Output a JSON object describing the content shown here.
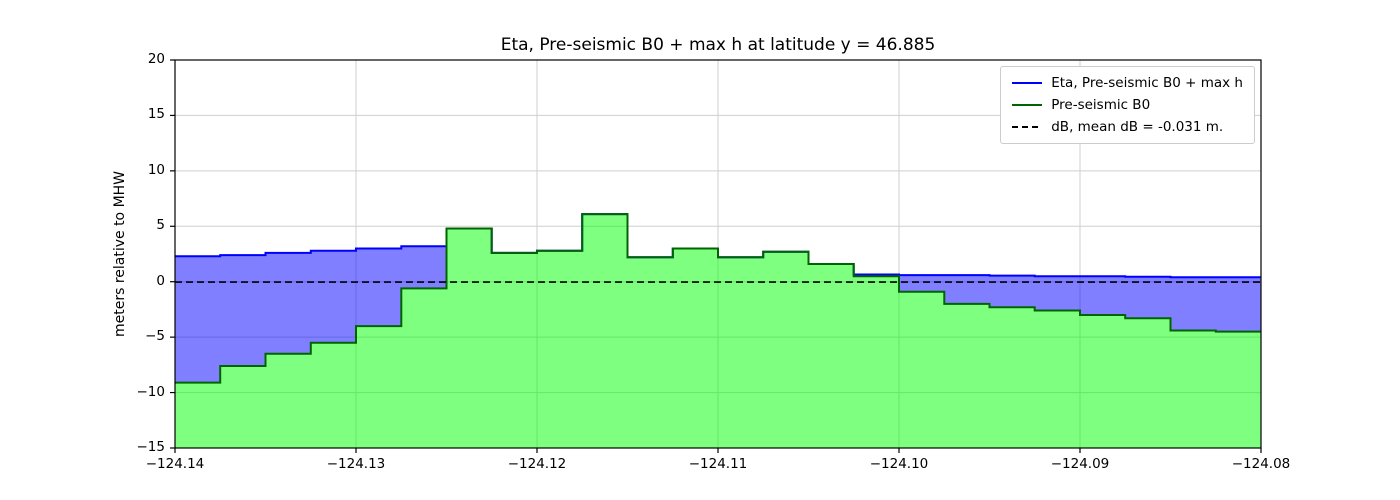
{
  "chart_data": {
    "type": "area",
    "title": "Eta, Pre-seismic B0 + max h at latitude y = 46.885",
    "xlabel": "",
    "ylabel": "meters relative to MHW",
    "xlim": [
      -124.14,
      -124.08
    ],
    "ylim": [
      -15,
      20
    ],
    "x_ticks": [
      -124.14,
      -124.13,
      -124.12,
      -124.11,
      -124.1,
      -124.09,
      -124.08
    ],
    "x_tick_labels": [
      "−124.14",
      "−124.13",
      "−124.12",
      "−124.11",
      "−124.10",
      "−124.09",
      "−124.08"
    ],
    "y_ticks": [
      -15,
      -10,
      -5,
      0,
      5,
      10,
      15,
      20
    ],
    "y_tick_labels": [
      "−15",
      "−10",
      "−5",
      "0",
      "5",
      "10",
      "15",
      "20"
    ],
    "grid": true,
    "legend_position": "upper right",
    "colors": {
      "background": "#ffffff",
      "grid": "#cfcfcf",
      "axes": "#000000"
    },
    "step_edges_longitude": [
      -124.14,
      -124.1375,
      -124.135,
      -124.1325,
      -124.13,
      -124.1275,
      -124.125,
      -124.1225,
      -124.12,
      -124.1175,
      -124.115,
      -124.1125,
      -124.11,
      -124.1075,
      -124.105,
      -124.1025,
      -124.1,
      -124.0975,
      -124.095,
      -124.0925,
      -124.09,
      -124.0875,
      -124.085,
      -124.0825,
      -124.08
    ],
    "series": [
      {
        "name": "Eta, Pre-seismic B0 + max h",
        "type": "step-fill",
        "line_style": "solid",
        "color": "#0000ff",
        "fill_color": "#0000ff",
        "fill_opacity": 0.5,
        "values": [
          2.3,
          2.4,
          2.6,
          2.8,
          3.0,
          3.2,
          4.8,
          2.6,
          2.8,
          6.1,
          2.2,
          3.0,
          2.2,
          2.7,
          1.6,
          0.65,
          0.6,
          0.6,
          0.55,
          0.5,
          0.5,
          0.45,
          0.4,
          0.4
        ]
      },
      {
        "name": "Pre-seismic B0",
        "type": "step-fill",
        "line_style": "solid",
        "color": "#006400",
        "fill_color": "#00ff00",
        "fill_opacity": 0.5,
        "values": [
          -9.1,
          -7.6,
          -6.5,
          -5.5,
          -4.0,
          -0.6,
          4.8,
          2.6,
          2.8,
          6.1,
          2.2,
          3.0,
          2.2,
          2.7,
          1.6,
          0.5,
          -0.9,
          -2.0,
          -2.3,
          -2.6,
          -3.0,
          -3.3,
          -4.4,
          -4.5
        ]
      },
      {
        "name": "dB, mean dB = -0.031 m.",
        "type": "hline",
        "line_style": "dashed",
        "color": "#000000",
        "value": -0.031
      }
    ]
  }
}
